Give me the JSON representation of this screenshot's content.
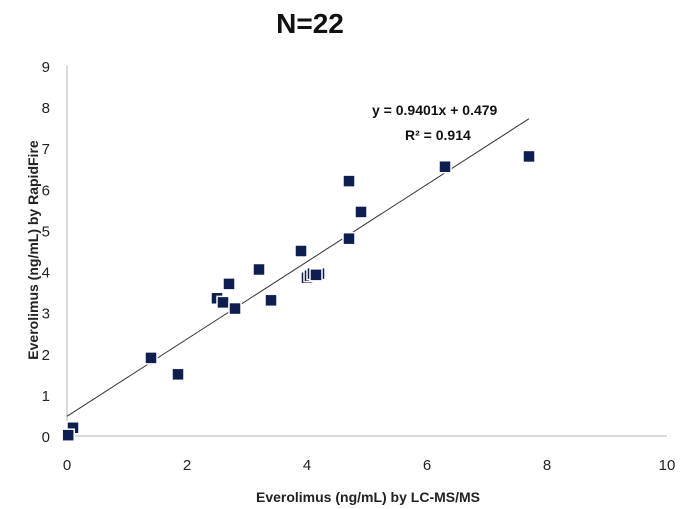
{
  "chart_data": {
    "type": "scatter",
    "title": "N=22",
    "xlabel": "Everolimus (ng/mL) by LC-MS/MS",
    "ylabel": "Everolimus (ng/mL) by RapidFire",
    "xlim": [
      0,
      10
    ],
    "ylim": [
      0,
      9
    ],
    "xticks": [
      "0",
      "2",
      "4",
      "6",
      "8",
      "10"
    ],
    "yticks": [
      "0",
      "1",
      "2",
      "3",
      "4",
      "5",
      "6",
      "7",
      "8",
      "9"
    ],
    "grid": false,
    "marker_color": "#0d1f4f",
    "trendline": {
      "slope": 0.9401,
      "intercept": 0.479,
      "x_range": [
        0,
        7.7
      ],
      "equation": "y = 0.9401x + 0.479",
      "r_squared": "R² = 0.914"
    },
    "points": [
      {
        "x": 0.0,
        "y": 0.0
      },
      {
        "x": 0.1,
        "y": 0.2
      },
      {
        "x": 1.4,
        "y": 1.9
      },
      {
        "x": 1.85,
        "y": 1.5
      },
      {
        "x": 2.5,
        "y": 3.35
      },
      {
        "x": 2.6,
        "y": 3.25
      },
      {
        "x": 2.7,
        "y": 3.7
      },
      {
        "x": 2.8,
        "y": 3.1
      },
      {
        "x": 3.2,
        "y": 4.05
      },
      {
        "x": 3.4,
        "y": 3.3
      },
      {
        "x": 3.9,
        "y": 4.5
      },
      {
        "x": 4.0,
        "y": 3.85
      },
      {
        "x": 4.05,
        "y": 3.9
      },
      {
        "x": 4.1,
        "y": 3.95
      },
      {
        "x": 4.2,
        "y": 3.95
      },
      {
        "x": 4.7,
        "y": 4.8
      },
      {
        "x": 4.7,
        "y": 6.2
      },
      {
        "x": 4.9,
        "y": 5.45
      },
      {
        "x": 6.3,
        "y": 6.55
      },
      {
        "x": 7.7,
        "y": 6.8
      },
      {
        "x": 0.02,
        "y": 0.02
      },
      {
        "x": 4.15,
        "y": 3.92
      }
    ]
  }
}
